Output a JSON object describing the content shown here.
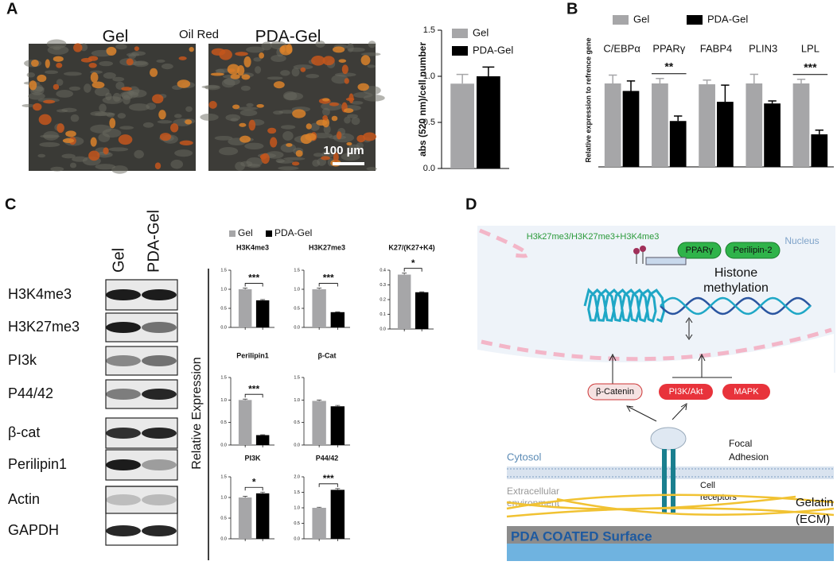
{
  "panel_labels": [
    "A",
    "B",
    "C",
    "D"
  ],
  "micrograph": {
    "left_title": "Gel",
    "center_title": "Oil Red",
    "right_title": "PDA-Gel",
    "scale_bar": "100 µm"
  },
  "chart_data": [
    {
      "type": "bar",
      "ylabel": "abs (520 nm)/cell number",
      "ylim": [
        0,
        1.5
      ],
      "yticks": [
        {
          "value": 0,
          "label": "0.0"
        },
        {
          "value": 0.5,
          "label": "0.5"
        },
        {
          "value": 1,
          "label": "1.0"
        },
        {
          "value": 1.5,
          "label": "1.5"
        }
      ],
      "series": [
        {
          "name": "Gel",
          "color": "#a6a6a8",
          "values": [
            0.92
          ],
          "errors": [
            0.1
          ]
        },
        {
          "name": "PDA-Gel",
          "color": "#000000",
          "values": [
            1.0
          ],
          "errors": [
            0.1
          ]
        }
      ]
    },
    {
      "type": "bar",
      "ylabel": "Relative expression to refrence gene",
      "ylim": [
        0,
        1.6
      ],
      "categories": [
        "C/EBPα",
        "PPARγ",
        "FABP4",
        "PLIN3",
        "LPL"
      ],
      "significance": [
        null,
        "**",
        null,
        null,
        "***"
      ],
      "series": [
        {
          "name": "Gel",
          "color": "#a6a6a8",
          "values": [
            1.0,
            1.0,
            0.99,
            1.0,
            1.0
          ],
          "errors": [
            0.1,
            0.06,
            0.05,
            0.11,
            0.05
          ]
        },
        {
          "name": "PDA-Gel",
          "color": "#000000",
          "values": [
            0.91,
            0.55,
            0.78,
            0.76,
            0.39
          ],
          "errors": [
            0.12,
            0.06,
            0.2,
            0.03,
            0.05
          ]
        }
      ]
    },
    {
      "type": "small-multiples",
      "ylabel": "Relative Expression",
      "series": [
        {
          "name": "Gel",
          "color": "#a6a6a8"
        },
        {
          "name": "PDA-Gel",
          "color": "#000000"
        }
      ],
      "panels": [
        {
          "title": "H3K4me3",
          "ylim": [
            0,
            1.5
          ],
          "yticks": [
            {
              "value": 0,
              "label": "0.0"
            },
            {
              "value": 0.5,
              "label": "0.5"
            },
            {
              "value": 1,
              "label": "1.0"
            },
            {
              "value": 1.5,
              "label": "1.5"
            }
          ],
          "values": [
            1.0,
            0.71
          ],
          "errors": [
            0.03,
            0.02
          ],
          "significance": "***"
        },
        {
          "title": "H3K27me3",
          "ylim": [
            0,
            1.5
          ],
          "yticks": [
            {
              "value": 0,
              "label": "0.0"
            },
            {
              "value": 0.5,
              "label": "0.5"
            },
            {
              "value": 1,
              "label": "1.0"
            },
            {
              "value": 1.5,
              "label": "1.5"
            }
          ],
          "values": [
            1.0,
            0.4
          ],
          "errors": [
            0.03,
            0.01
          ],
          "significance": "***"
        },
        {
          "title": "K27/(K27+K4)",
          "ylim": [
            0,
            0.4
          ],
          "yticks": [
            {
              "value": 0,
              "label": "0.0"
            },
            {
              "value": 0.1,
              "label": "0.1"
            },
            {
              "value": 0.2,
              "label": "0.2"
            },
            {
              "value": 0.3,
              "label": "0.3"
            },
            {
              "value": 0.4,
              "label": "0.4"
            }
          ],
          "values": [
            0.37,
            0.25
          ],
          "errors": [
            0.01,
            0.003
          ],
          "significance": "*"
        },
        {
          "title": "Perilipin1",
          "ylim": [
            0,
            1.5
          ],
          "yticks": [
            {
              "value": 0,
              "label": "0.0"
            },
            {
              "value": 0.5,
              "label": "0.5"
            },
            {
              "value": 1,
              "label": "1.0"
            },
            {
              "value": 1.5,
              "label": "1.5"
            }
          ],
          "values": [
            1.0,
            0.22
          ],
          "errors": [
            0.02,
            0.01
          ],
          "significance": "***"
        },
        {
          "title": "β-Cat",
          "ylim": [
            0,
            1.5
          ],
          "yticks": [
            {
              "value": 0,
              "label": "0.0"
            },
            {
              "value": 0.5,
              "label": "0.5"
            },
            {
              "value": 1,
              "label": "1.0"
            },
            {
              "value": 1.5,
              "label": "1.5"
            }
          ],
          "values": [
            0.98,
            0.86
          ],
          "errors": [
            0.02,
            0.02
          ],
          "significance": null
        },
        {
          "title": "PI3K",
          "ylim": [
            0,
            1.5
          ],
          "yticks": [
            {
              "value": 0,
              "label": "0.0"
            },
            {
              "value": 0.5,
              "label": "0.5"
            },
            {
              "value": 1,
              "label": "1.0"
            },
            {
              "value": 1.5,
              "label": "1.5"
            }
          ],
          "values": [
            1.0,
            1.1
          ],
          "errors": [
            0.03,
            0.03
          ],
          "significance": "*"
        },
        {
          "title": "P44/42",
          "ylim": [
            0,
            2.0
          ],
          "yticks": [
            {
              "value": 0,
              "label": "0.0"
            },
            {
              "value": 0.5,
              "label": "0.5"
            },
            {
              "value": 1,
              "label": "1.0"
            },
            {
              "value": 1.5,
              "label": "1.5"
            },
            {
              "value": 2,
              "label": "2.0"
            }
          ],
          "values": [
            1.0,
            1.58
          ],
          "errors": [
            0.02,
            0.04
          ],
          "significance": "***"
        }
      ]
    }
  ],
  "blot": {
    "lanes": [
      "Gel",
      "PDA-Gel"
    ],
    "rows": [
      "H3K4me3",
      "H3K27me3",
      "PI3k",
      "P44/42",
      "β-cat",
      "Perilipin1",
      "Actin",
      "GAPDH"
    ]
  },
  "diagram": {
    "ratio": "H3k27me3/H3K27me3+H3K4me3",
    "nucleus": "Nucleus",
    "genes": [
      "PPARγ",
      "Perilipin-2"
    ],
    "histone": [
      "Histone",
      "methylation"
    ],
    "pathways": [
      "β-Catenin",
      "PI3K/Akt",
      "MAPK"
    ],
    "focal": [
      "Focal",
      "Adhesion"
    ],
    "cytosol": "Cytosol",
    "extracellular": [
      "Extracellular",
      "environment"
    ],
    "receptors": [
      "Cell",
      "receptors"
    ],
    "gelatin": [
      "Gelatin",
      "(ECM)"
    ],
    "surface": "PDA COATED Surface"
  }
}
